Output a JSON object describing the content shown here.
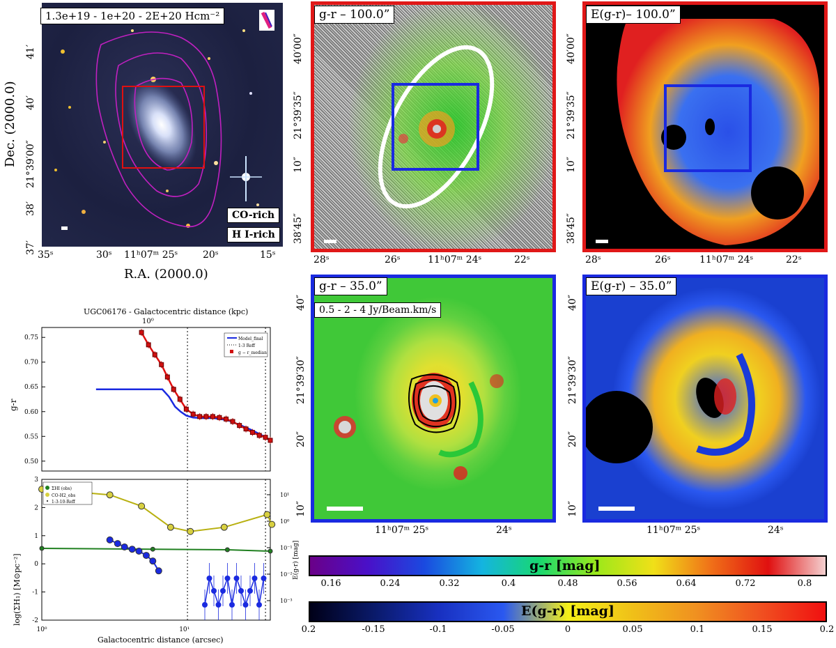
{
  "panel_a": {
    "label": "1.3e+19 - 1e+20 - 2E+20 Hcm⁻²",
    "legend1": "CO-rich",
    "legend2": "H I-rich",
    "xticks": [
      "35ˢ",
      "30ˢ",
      "11ʰ07ᵐ 25ˢ",
      "20ˢ",
      "15ˢ"
    ],
    "yticks": [
      "37′",
      "38′",
      "21°39′00″",
      "40′",
      "41′"
    ],
    "xlabel": "R.A. (2000.0)",
    "ylabel": "Dec. (2000.0)"
  },
  "panel_b": {
    "label": "g-r – 100.0”",
    "xticks": [
      "28ˢ",
      "26ˢ",
      "11ʰ07ᵐ 24ˢ",
      "22ˢ"
    ],
    "yticks": [
      "38′45″",
      "10″",
      "21°39′35″",
      "40′00″"
    ]
  },
  "panel_c": {
    "label": "E(g-r)– 100.0”",
    "xticks": [
      "28ˢ",
      "26ˢ",
      "11ʰ07ᵐ 24ˢ",
      "22ˢ"
    ],
    "yticks": [
      "38′45″",
      "10″",
      "21°39′35″",
      "40′00″"
    ]
  },
  "panel_d": {
    "label": "g-r – 35.0”",
    "label2": "0.5 - 2 - 4 Jy/Beam.km/s",
    "xticks": [
      "11ʰ07ᵐ 25ˢ",
      "24ˢ"
    ],
    "yticks": [
      "10″",
      "20″",
      "21°39′30″",
      "40″"
    ]
  },
  "panel_e": {
    "label": "E(g-r) – 35.0”",
    "xticks": [
      "11ʰ07ᵐ 25ˢ",
      "24ˢ"
    ],
    "yticks": [
      "10″",
      "20″",
      "21°39′30″",
      "40″"
    ]
  },
  "colorbar_gr": {
    "label": "g-r [mag]",
    "ticks": [
      "0.16",
      "0.24",
      "0.32",
      "0.4",
      "0.48",
      "0.56",
      "0.64",
      "0.72",
      "0.8"
    ],
    "stops": [
      "#6a0088",
      "#4a10c8",
      "#1a4ae0",
      "#14b4e0",
      "#18d870",
      "#9ce81a",
      "#f0e018",
      "#f07018",
      "#e01010",
      "#f4d0d0"
    ]
  },
  "colorbar_egr": {
    "label": "E(g-r) [mag]",
    "ticks": [
      "0.2",
      "-0.15",
      "-0.1",
      "-0.05",
      "0",
      "0.05",
      "0.1",
      "0.15",
      "0.2"
    ],
    "stops": [
      "#000018",
      "#0a1a6a",
      "#1830c0",
      "#2a58f0",
      "#f4f018",
      "#f0c018",
      "#f09020",
      "#f05020",
      "#f01010"
    ]
  },
  "plot_top": {
    "title": "UGC06176 - Galactocentric distance (kpc)",
    "top_tick": "10⁰",
    "ylabel": "g-r",
    "yticks": [
      "0.75",
      "0.70",
      "0.65",
      "0.60",
      "0.55",
      "0.50"
    ],
    "legend": [
      "Model_final",
      "1-3 Reff",
      "g − r_median"
    ]
  },
  "plot_bottom": {
    "ylabel": "log(ΣH₁) [M⊙pc⁻²]",
    "ylabel_right": "E(g-r) [mag]",
    "yticks": [
      "3",
      "2",
      "1",
      "0",
      "-1",
      "-2"
    ],
    "yticks_right": [
      "10¹",
      "10⁰",
      "10⁻¹",
      "10⁻²",
      "10⁻³"
    ],
    "xticks": [
      "10⁰",
      "10¹"
    ],
    "xlabel": "Galactocentric distance (arcsec)",
    "legend": [
      "ΣHI (obs)",
      "CO-H2_obs",
      "1-3-10-Reff"
    ]
  },
  "chart_data": [
    {
      "type": "line",
      "title": "UGC06176 - Galactocentric distance (kpc)",
      "ylabel": "g-r",
      "xlabel": "Galactocentric distance (arcsec)",
      "ylim": [
        0.48,
        0.77
      ],
      "xscale": "log",
      "xlim": [
        1,
        40
      ],
      "series": [
        {
          "name": "g − r_median",
          "x": [
            5.0,
            5.6,
            6.2,
            6.9,
            7.6,
            8.4,
            9.3,
            10.3,
            11.5,
            12.8,
            14.2,
            15.8,
            17.6,
            19.6,
            21.8,
            24.3,
            27.0,
            30.0,
            33.5,
            37.0,
            40.0
          ],
          "y": [
            0.76,
            0.735,
            0.715,
            0.695,
            0.67,
            0.645,
            0.625,
            0.605,
            0.595,
            0.59,
            0.59,
            0.59,
            0.588,
            0.585,
            0.58,
            0.572,
            0.565,
            0.558,
            0.552,
            0.548,
            0.542
          ]
        },
        {
          "name": "Model_final",
          "x": [
            2.4,
            3.0,
            4.0,
            5.5,
            7.0,
            7.8,
            8.6,
            9.4,
            10.3,
            11.5,
            13.0,
            16.0,
            20.0,
            25.0,
            30.0,
            35.0,
            40.0
          ],
          "y": [
            0.645,
            0.645,
            0.645,
            0.645,
            0.645,
            0.63,
            0.61,
            0.6,
            0.592,
            0.588,
            0.587,
            0.587,
            0.583,
            0.572,
            0.562,
            0.552,
            0.542
          ]
        }
      ]
    },
    {
      "type": "line",
      "ylabel": "log(ΣH₁) [M⊙pc⁻²]",
      "xlabel": "Galactocentric distance (arcsec)",
      "ylim": [
        -2,
        3
      ],
      "xscale": "log",
      "xlim": [
        1,
        40
      ],
      "series": [
        {
          "name": "ΣHI (obs)",
          "x": [
            1.0,
            6.0,
            20.0,
            40.0
          ],
          "y": [
            0.55,
            0.52,
            0.5,
            0.45
          ]
        },
        {
          "name": "CO-H2_obs",
          "x": [
            1.0,
            3.0,
            5.0,
            8.0,
            11.0,
            19.0,
            38.0,
            41.0
          ],
          "y": [
            2.65,
            2.45,
            2.05,
            1.3,
            1.15,
            1.3,
            1.75,
            1.4
          ]
        },
        {
          "name": "E(g-r)",
          "x": [
            3.0,
            3.4,
            3.8,
            4.3,
            4.8,
            5.4,
            6.0,
            6.6
          ],
          "y": [
            0.85,
            0.72,
            0.6,
            0.52,
            0.45,
            0.3,
            0.1,
            -0.25
          ]
        }
      ]
    },
    {
      "type": "bar",
      "title": "g-r [mag]",
      "categories": [
        "0.16",
        "0.24",
        "0.32",
        "0.4",
        "0.48",
        "0.56",
        "0.64",
        "0.72",
        "0.8"
      ]
    }
  ]
}
